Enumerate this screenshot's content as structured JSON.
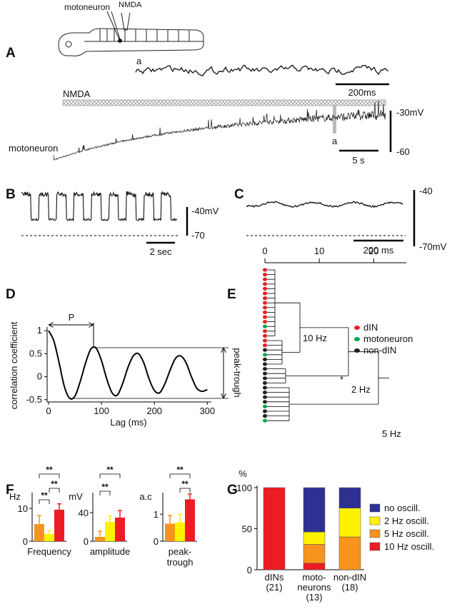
{
  "figure": {
    "panel_labels": [
      "A",
      "B",
      "C",
      "D",
      "E",
      "F",
      "G"
    ],
    "schematic": {
      "cell": "motoneuron",
      "drug": "NMDA"
    },
    "panel_a": {
      "inset_marker": "a",
      "inset_time_scale": "200ms",
      "drug_bar": "NMDA",
      "trace_label": "motoneuron",
      "trace_marker": "a",
      "voltage_top": "-30mV",
      "voltage_bottom": "-60",
      "time_scale": "5 s"
    },
    "panel_b": {
      "voltage_top": "-40mV",
      "voltage_bottom": "-70",
      "time_scale": "2 sec"
    },
    "panel_c": {
      "voltage_top": "-40",
      "voltage_bottom": "-70mV",
      "time_scale": "200 ms"
    }
  },
  "chart_data": [
    {
      "type": "line",
      "ylabel": "correlation coefficient",
      "xlabel": "Lag (ms)",
      "x": [
        0,
        10,
        20,
        30,
        40,
        50,
        60,
        70,
        80,
        90,
        100,
        110,
        120,
        130,
        140,
        150,
        160,
        170,
        180,
        190,
        200,
        210,
        220,
        230,
        240,
        250,
        260,
        270,
        280,
        290,
        300
      ],
      "values": [
        1.0,
        0.78,
        0.3,
        -0.22,
        -0.47,
        -0.42,
        -0.1,
        0.3,
        0.6,
        0.62,
        0.35,
        -0.05,
        -0.35,
        -0.4,
        -0.15,
        0.2,
        0.45,
        0.5,
        0.3,
        -0.05,
        -0.3,
        -0.35,
        -0.15,
        0.15,
        0.4,
        0.45,
        0.3,
        0.0,
        -0.25,
        -0.32,
        -0.28
      ],
      "color": "#000000",
      "xlim": [
        0,
        305
      ],
      "ylim": [
        -0.55,
        1.05
      ],
      "xticks": [
        0,
        100,
        200,
        300
      ],
      "yticks": [
        -0.5,
        0,
        0.5,
        1
      ],
      "annotations": [
        "P",
        "peak-trough"
      ]
    },
    {
      "type": "dendrogram",
      "xlim": [
        0,
        26
      ],
      "xticks": [
        0,
        10,
        20
      ],
      "legend": [
        {
          "name": "dIN",
          "color": "#ed1c24"
        },
        {
          "name": "motoneuron",
          "color": "#00a651"
        },
        {
          "name": "non-dIN",
          "color": "#231f20"
        }
      ],
      "annotations": [
        "10 Hz",
        "*",
        "2 Hz",
        "5 Hz"
      ]
    },
    {
      "type": "bar",
      "ylabel": "Hz",
      "xlabel": [
        "Frequency"
      ],
      "values": [
        5.2,
        2.2,
        9.6
      ],
      "errors": [
        2.6,
        1.0,
        1.8
      ],
      "colors": [
        "#f7941d",
        "#fff200",
        "#ed1c24"
      ],
      "ylim": [
        0,
        14.8
      ],
      "yticks": [
        0,
        10
      ],
      "significance": [
        "**",
        "**",
        "**"
      ]
    },
    {
      "type": "bar",
      "ylabel": "mV",
      "xlabel": [
        "amplitude"
      ],
      "values": [
        6,
        27,
        33
      ],
      "errors": [
        8,
        8,
        10
      ],
      "colors": [
        "#f7941d",
        "#fff200",
        "#ed1c24"
      ],
      "ylim": [
        0,
        68
      ],
      "yticks": [
        0,
        40
      ],
      "significance": [
        "**",
        "**"
      ]
    },
    {
      "type": "bar",
      "ylabel": "a.c",
      "xlabel": [
        "peak-",
        "trough"
      ],
      "values": [
        0.65,
        0.7,
        1.55
      ],
      "errors": [
        0.3,
        0.3,
        0.2
      ],
      "colors": [
        "#f7941d",
        "#fff200",
        "#ed1c24"
      ],
      "ylim": [
        0,
        1.8
      ],
      "yticks": [
        0,
        1
      ],
      "significance": [
        "**",
        "**"
      ]
    },
    {
      "type": "stacked_bar",
      "ylabel": "%",
      "categories": [
        [
          "dINs",
          "(21)"
        ],
        [
          "moto-",
          "neurons",
          "(13)"
        ],
        [
          "non-dIN",
          "(18)"
        ]
      ],
      "series": [
        {
          "name": "10 Hz oscill.",
          "color": "#ed1c24",
          "values": [
            100,
            8,
            0
          ]
        },
        {
          "name": "5 Hz oscill.",
          "color": "#f7941d",
          "values": [
            0,
            23,
            40
          ]
        },
        {
          "name": "2 Hz oscill.",
          "color": "#fff200",
          "values": [
            0,
            15,
            35
          ]
        },
        {
          "name": "no oscill.",
          "color": "#2e3192",
          "values": [
            0,
            54,
            25
          ]
        }
      ],
      "ylim": [
        0,
        100
      ],
      "yticks": [
        0,
        50,
        100
      ]
    }
  ]
}
